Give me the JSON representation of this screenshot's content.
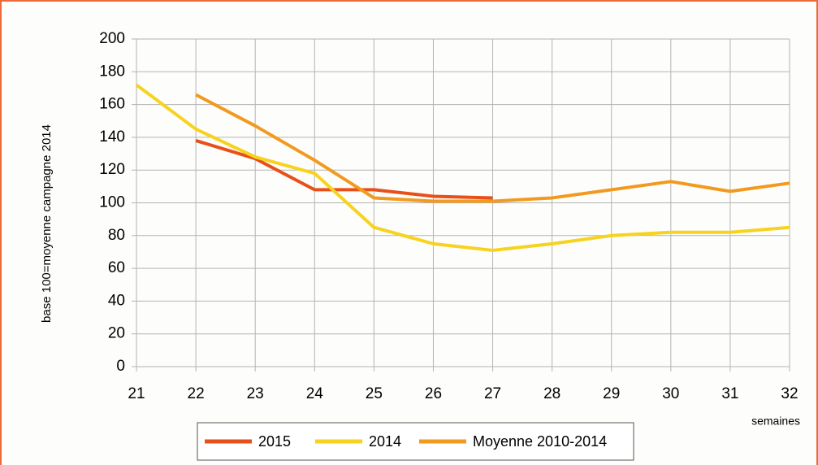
{
  "chart_data": {
    "type": "line",
    "y_label": "base 100=moyenne campagne 2014",
    "x_label": "semaines",
    "x": [
      21,
      22,
      23,
      24,
      25,
      26,
      27,
      28,
      29,
      30,
      31,
      32
    ],
    "series": [
      {
        "name": "2015",
        "color": "#e8501a",
        "values": [
          null,
          138,
          127,
          108,
          108,
          104,
          103,
          null,
          null,
          null,
          null,
          null
        ]
      },
      {
        "name": "2014",
        "color": "#f7d21f",
        "values": [
          172,
          145,
          128,
          118,
          85,
          75,
          71,
          75,
          80,
          82,
          82,
          85
        ]
      },
      {
        "name": "Moyenne 2010-2014",
        "color": "#f29a1f",
        "values": [
          null,
          166,
          147,
          126,
          103,
          101,
          101,
          103,
          108,
          113,
          107,
          112
        ]
      }
    ],
    "xlim": [
      21,
      32
    ],
    "xticks": [
      21,
      22,
      23,
      24,
      25,
      26,
      27,
      28,
      29,
      30,
      31,
      32
    ],
    "ylim": [
      0,
      200
    ],
    "yticks": [
      0,
      20,
      40,
      60,
      80,
      100,
      120,
      140,
      160,
      180,
      200
    ],
    "grid": true,
    "legend": "bottom"
  }
}
